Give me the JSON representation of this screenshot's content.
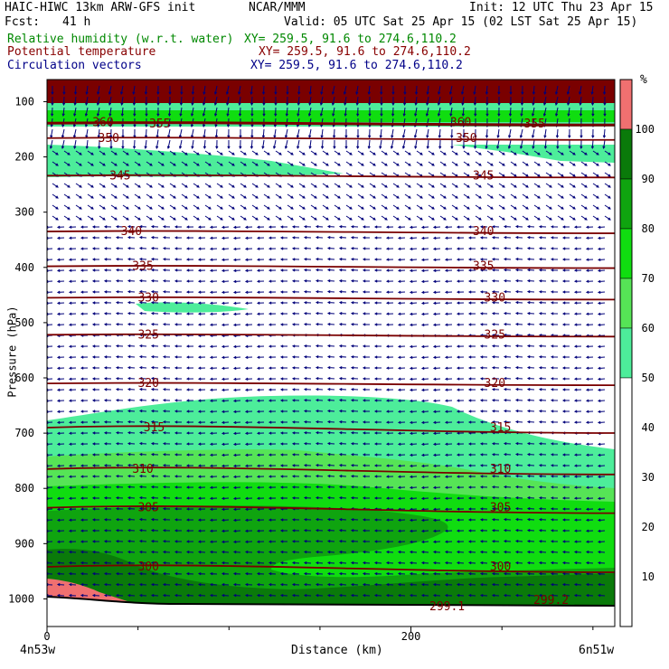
{
  "header": {
    "model": "HAIC-HIWC 13km ARW-GFS init",
    "org": "NCAR/MMM",
    "init": "Init: 12 UTC Thu 23 Apr 15",
    "fcst_label": "Fcst:",
    "fcst_value": "41 h",
    "valid": "Valid: 05 UTC Sat 25 Apr 15 (02 LST Sat 25 Apr 15)",
    "fields": [
      {
        "name": "Relative humidity (w.r.t. water)",
        "xy": "XY= 259.5, 91.6 to 274.6,110.2",
        "color": "#008800"
      },
      {
        "name": "Potential temperature",
        "xy": "XY= 259.5, 91.6 to 274.6,110.2",
        "color": "#880000"
      },
      {
        "name": "Circulation vectors",
        "xy": "XY= 259.5, 91.6 to 274.6,110.2",
        "color": "#000088"
      }
    ]
  },
  "chart_data": {
    "type": "heatmap",
    "title": "",
    "xlabel": "Distance (km)",
    "ylabel": "Pressure (hPa)",
    "x_ticks": [
      "0",
      "200"
    ],
    "x_tick_values": [
      0,
      200
    ],
    "x_endpoints": [
      "4n53w",
      "6n51w"
    ],
    "xlim": [
      0,
      312
    ],
    "y_ticks": [
      "100",
      "200",
      "300",
      "400",
      "500",
      "600",
      "700",
      "800",
      "900",
      "1000"
    ],
    "y_tick_values": [
      100,
      200,
      300,
      400,
      500,
      600,
      700,
      800,
      900,
      1000
    ],
    "ylim": [
      60,
      1050
    ],
    "colorbar": {
      "unit": "%",
      "levels": [
        "10",
        "20",
        "30",
        "40",
        "50",
        "60",
        "70",
        "80",
        "90",
        "100"
      ],
      "colors": [
        {
          "range": [
            0,
            50
          ],
          "color": "#ffffff"
        },
        {
          "range": [
            50,
            60
          ],
          "color": "#4ded9a"
        },
        {
          "range": [
            60,
            70
          ],
          "color": "#56e456"
        },
        {
          "range": [
            70,
            80
          ],
          "color": "#10dd10"
        },
        {
          "range": [
            80,
            90
          ],
          "color": "#0fa40f"
        },
        {
          "range": [
            90,
            100
          ],
          "color": "#0a7a0a"
        },
        {
          "range": [
            100,
            110
          ],
          "color": "#f07070"
        }
      ]
    },
    "theta_contours": [
      {
        "label": "360",
        "p": 138,
        "label_positions": [
          0.08,
          0.71
        ]
      },
      {
        "label": "355",
        "p": 140,
        "label_positions": [
          0.18,
          0.84
        ]
      },
      {
        "label": "350",
        "p": 166,
        "label_positions": [
          0.09,
          0.72
        ]
      },
      {
        "label": "345",
        "p": 234,
        "label_positions": [
          0.11,
          0.75
        ]
      },
      {
        "label": "340",
        "p": 335,
        "label_positions": [
          0.13,
          0.75
        ]
      },
      {
        "label": "335",
        "p": 398,
        "label_positions": [
          0.15,
          0.75
        ]
      },
      {
        "label": "330",
        "p": 455,
        "label_positions": [
          0.16,
          0.77
        ]
      },
      {
        "label": "325",
        "p": 522,
        "label_positions": [
          0.16,
          0.77
        ]
      },
      {
        "label": "320",
        "p": 610,
        "label_positions": [
          0.16,
          0.77
        ]
      },
      {
        "label": "315",
        "p": 690,
        "label_positions": [
          0.17,
          0.78
        ]
      },
      {
        "label": "310",
        "p": 765,
        "label_positions": [
          0.15,
          0.78
        ]
      },
      {
        "label": "305",
        "p": 835,
        "label_positions": [
          0.16,
          0.78
        ]
      },
      {
        "label": "300",
        "p": 942,
        "label_positions": [
          0.16,
          0.78
        ]
      }
    ],
    "surface_labels": [
      "299.1",
      "299.2"
    ],
    "vectors": "Circulation vectors"
  }
}
